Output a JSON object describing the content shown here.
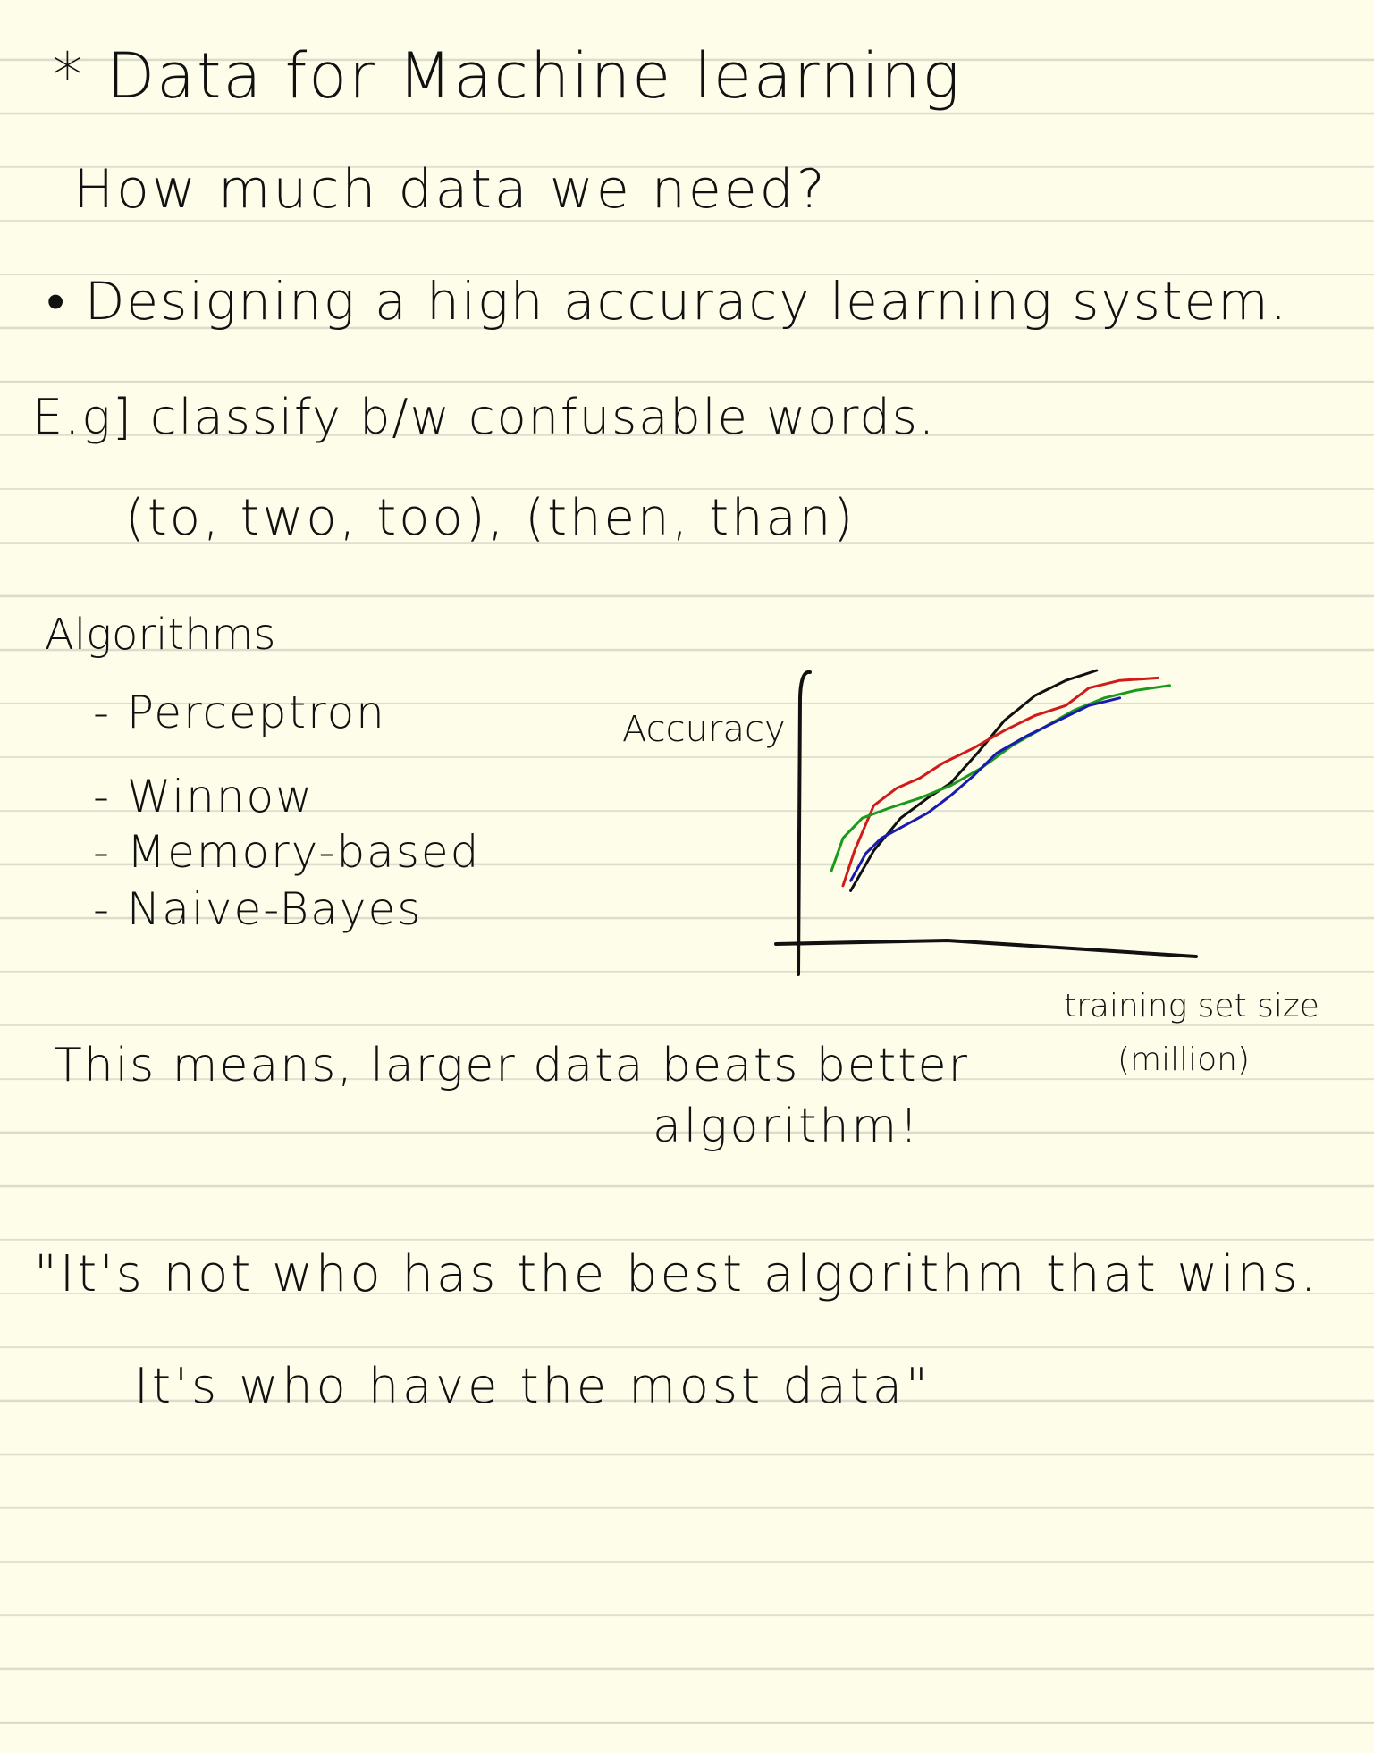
{
  "notes": {
    "title": "* Data for Machine learning",
    "question": "How much data we need?",
    "bullet": "• Designing a high accuracy learning system.",
    "example": "E.g] classify b/w confusable words.",
    "example_words": "(to, two, too), (then, than)",
    "algorithms_heading": "Algorithms",
    "algorithms": [
      "- Perceptron",
      "- Winnow",
      "- Memory-based",
      "- Naive-Bayes"
    ],
    "conclusion_line1": "This means, larger data beats better",
    "conclusion_line2": "algorithm!",
    "quote_line1": "\"It's not who has the best algorithm that wins.",
    "quote_line2": "It's who have the most data\""
  },
  "colors": {
    "paper": "#fefde9",
    "rule_line": "#dcdccd",
    "ink": "#111111",
    "series_black": "#111111",
    "series_red": "#d11a1a",
    "series_green": "#1a9a1a",
    "series_blue": "#1a1ab0"
  },
  "chart_data": {
    "type": "line",
    "title": "",
    "xlabel": "training set size (million)",
    "ylabel": "Accuracy",
    "ylim": [
      0,
      1
    ],
    "xlim": [
      0,
      1
    ],
    "grid": false,
    "legend": "none",
    "series": [
      {
        "color": "#111111",
        "x": [
          0.12,
          0.18,
          0.25,
          0.32,
          0.38,
          0.45,
          0.52,
          0.6,
          0.68,
          0.76
        ],
        "y": [
          0.12,
          0.28,
          0.41,
          0.49,
          0.55,
          0.67,
          0.8,
          0.9,
          0.96,
          1.0
        ]
      },
      {
        "color": "#d11a1a",
        "x": [
          0.1,
          0.13,
          0.18,
          0.24,
          0.3,
          0.36,
          0.44,
          0.52,
          0.6,
          0.68,
          0.74,
          0.82,
          0.92
        ],
        "y": [
          0.14,
          0.28,
          0.46,
          0.53,
          0.57,
          0.63,
          0.69,
          0.76,
          0.82,
          0.86,
          0.93,
          0.96,
          0.97
        ]
      },
      {
        "color": "#1a9a1a",
        "x": [
          0.07,
          0.1,
          0.15,
          0.22,
          0.3,
          0.38,
          0.46,
          0.54,
          0.62,
          0.7,
          0.78,
          0.86,
          0.95
        ],
        "y": [
          0.2,
          0.33,
          0.41,
          0.45,
          0.49,
          0.54,
          0.61,
          0.7,
          0.77,
          0.84,
          0.89,
          0.92,
          0.94
        ]
      },
      {
        "color": "#1a1ab0",
        "x": [
          0.12,
          0.16,
          0.2,
          0.26,
          0.32,
          0.38,
          0.44,
          0.5,
          0.58,
          0.66,
          0.74,
          0.82
        ],
        "y": [
          0.16,
          0.27,
          0.33,
          0.38,
          0.43,
          0.5,
          0.58,
          0.67,
          0.74,
          0.8,
          0.86,
          0.89
        ]
      }
    ]
  }
}
